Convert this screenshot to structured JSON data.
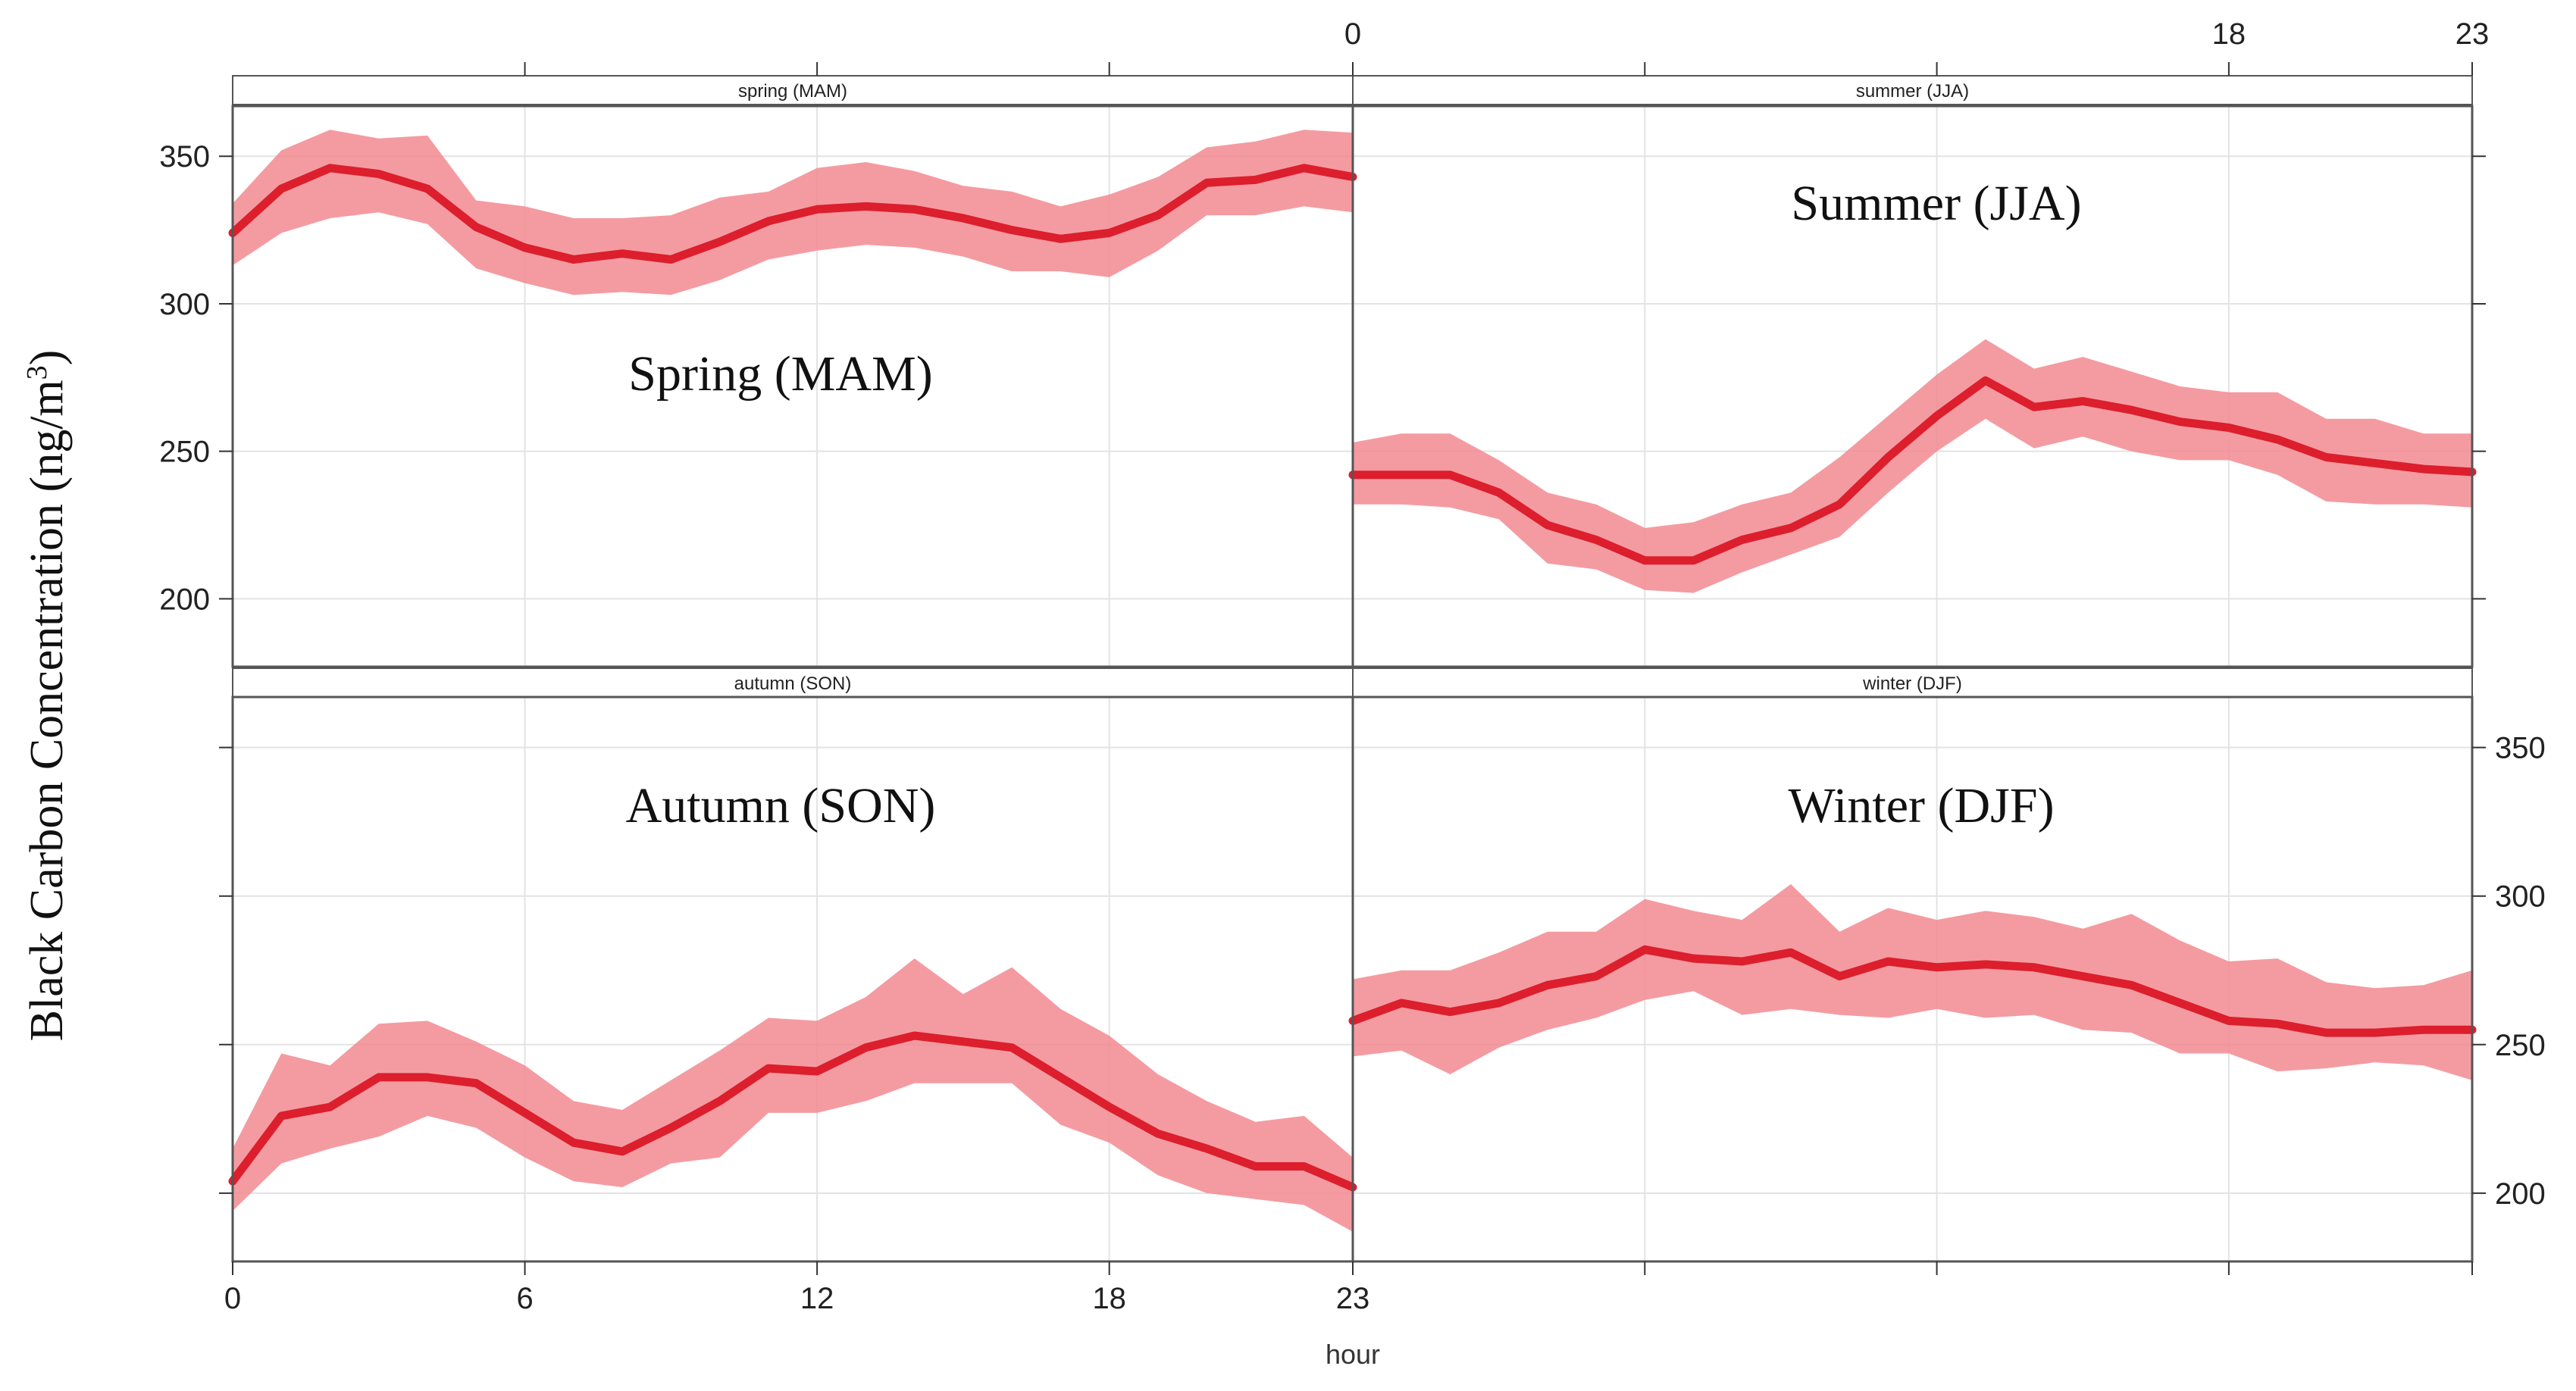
{
  "chart_data": {
    "type": "line",
    "title": "",
    "ylabel": "Black Carbon Concentration (ng/m",
    "ylabel_superscript": "3",
    "ylabel_close": ")",
    "xlabel": "hour",
    "xlim": [
      0,
      23
    ],
    "ylim": [
      177,
      367
    ],
    "yticks": [
      200,
      250,
      300,
      350
    ],
    "xticks_bottom_left": [
      "0",
      "6",
      "12",
      "18",
      "23"
    ],
    "xticks_bottom_right": [
      "23"
    ],
    "xticks_top_right": [
      "0",
      "18",
      "23"
    ],
    "band_color": "#f28a90",
    "line_color": "#dc1e2d",
    "hours": [
      0,
      1,
      2,
      3,
      4,
      5,
      6,
      7,
      8,
      9,
      10,
      11,
      12,
      13,
      14,
      15,
      16,
      17,
      18,
      19,
      20,
      21,
      22,
      23
    ],
    "panels": [
      {
        "key": "spring",
        "strip": "spring (MAM)",
        "label": "Spring (MAM)",
        "mean": [
          324,
          339,
          346,
          344,
          339,
          326,
          319,
          315,
          317,
          315,
          321,
          328,
          332,
          333,
          332,
          329,
          325,
          322,
          324,
          330,
          341,
          342,
          346,
          343
        ],
        "lower": [
          313,
          324,
          329,
          331,
          327,
          312,
          307,
          303,
          304,
          303,
          308,
          315,
          318,
          320,
          319,
          316,
          311,
          311,
          309,
          318,
          330,
          330,
          333,
          331
        ],
        "upper": [
          334,
          352,
          359,
          356,
          357,
          335,
          333,
          329,
          329,
          330,
          336,
          338,
          346,
          348,
          345,
          340,
          338,
          333,
          337,
          343,
          353,
          355,
          359,
          358
        ]
      },
      {
        "key": "summer",
        "strip": "summer (JJA)",
        "label": "Summer (JJA)",
        "mean": [
          242,
          242,
          242,
          236,
          225,
          220,
          213,
          213,
          220,
          224,
          232,
          248,
          262,
          274,
          265,
          267,
          264,
          260,
          258,
          254,
          248,
          246,
          244,
          243
        ],
        "lower": [
          232,
          232,
          231,
          227,
          212,
          210,
          203,
          202,
          209,
          215,
          221,
          236,
          250,
          261,
          251,
          255,
          250,
          247,
          247,
          242,
          233,
          232,
          232,
          231
        ],
        "upper": [
          253,
          256,
          256,
          247,
          236,
          232,
          224,
          226,
          232,
          236,
          248,
          262,
          276,
          288,
          278,
          282,
          277,
          272,
          270,
          270,
          261,
          261,
          256,
          256
        ]
      },
      {
        "key": "autumn",
        "strip": "autumn (SON)",
        "label": "Autumn (SON)",
        "mean": [
          204,
          226,
          229,
          239,
          239,
          237,
          227,
          217,
          214,
          222,
          231,
          242,
          241,
          249,
          253,
          251,
          249,
          239,
          229,
          220,
          215,
          209,
          209,
          202
        ],
        "lower": [
          194,
          210,
          215,
          219,
          226,
          222,
          212,
          204,
          202,
          210,
          212,
          227,
          227,
          231,
          237,
          237,
          237,
          223,
          217,
          206,
          200,
          198,
          196,
          187
        ],
        "upper": [
          215,
          247,
          243,
          257,
          258,
          251,
          243,
          231,
          228,
          238,
          248,
          259,
          258,
          266,
          279,
          267,
          276,
          262,
          253,
          240,
          231,
          224,
          226,
          212
        ]
      },
      {
        "key": "winter",
        "strip": "winter (DJF)",
        "label": "Winter (DJF)",
        "mean": [
          258,
          264,
          261,
          264,
          270,
          273,
          282,
          279,
          278,
          281,
          273,
          278,
          276,
          277,
          276,
          273,
          270,
          264,
          258,
          257,
          254,
          254,
          255,
          255
        ],
        "lower": [
          246,
          248,
          240,
          249,
          255,
          259,
          265,
          268,
          260,
          262,
          260,
          259,
          262,
          259,
          260,
          255,
          254,
          247,
          247,
          241,
          242,
          244,
          243,
          238
        ],
        "upper": [
          272,
          275,
          275,
          281,
          288,
          288,
          299,
          295,
          292,
          304,
          288,
          296,
          292,
          295,
          293,
          289,
          294,
          285,
          278,
          279,
          271,
          269,
          270,
          275
        ]
      }
    ]
  }
}
